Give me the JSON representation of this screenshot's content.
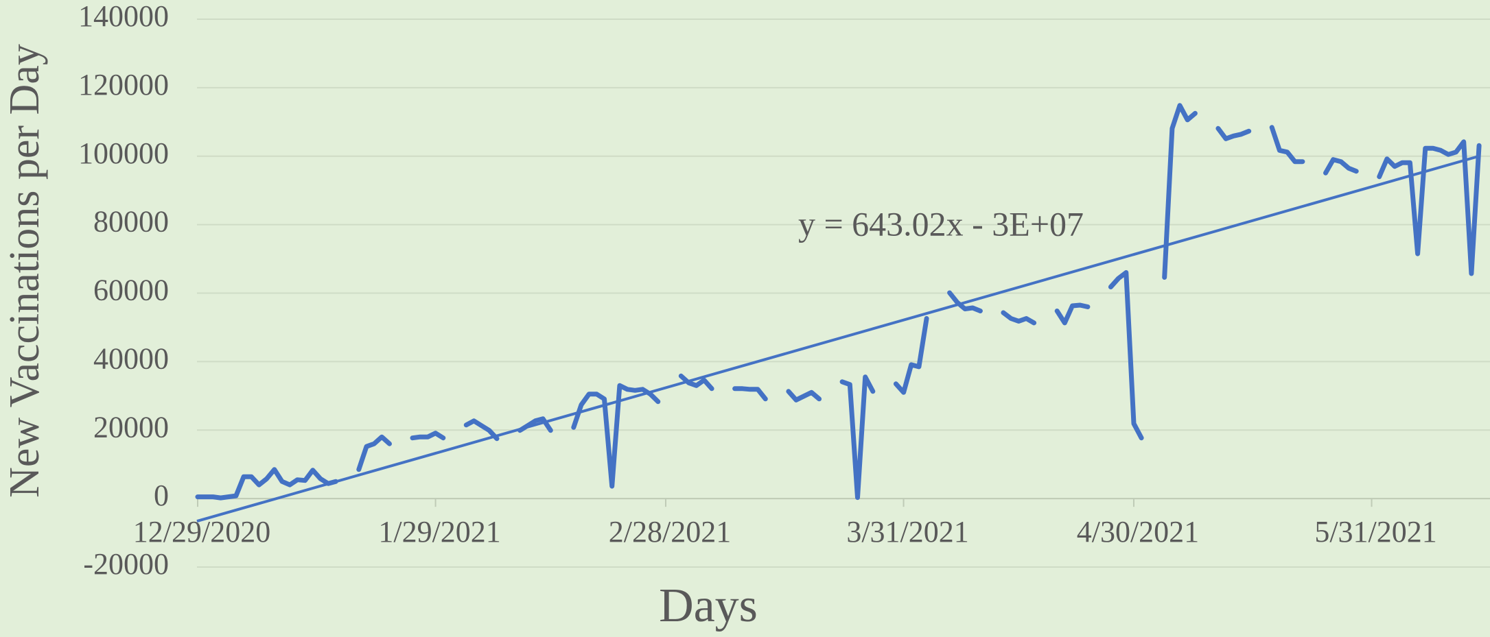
{
  "chart_data": {
    "type": "line",
    "y_label": "New Vaccinations per Day",
    "x_label": "Days",
    "categories": [
      "12/29/2020",
      null,
      null,
      null,
      null,
      null,
      null,
      null,
      null,
      null,
      null,
      null,
      null,
      null,
      null,
      null,
      null,
      null,
      null,
      null,
      null,
      null,
      null,
      null,
      null,
      null,
      null,
      null,
      null,
      null,
      null,
      "1/29/2021",
      null,
      null,
      null,
      null,
      null,
      null,
      null,
      null,
      null,
      null,
      null,
      null,
      null,
      null,
      null,
      null,
      null,
      null,
      null,
      null,
      null,
      null,
      null,
      null,
      null,
      null,
      null,
      null,
      null,
      "2/28/2021",
      null,
      null,
      null,
      null,
      null,
      null,
      null,
      null,
      null,
      null,
      null,
      null,
      null,
      null,
      null,
      null,
      null,
      null,
      null,
      null,
      null,
      null,
      null,
      null,
      null,
      null,
      null,
      null,
      null,
      null,
      "3/31/2021",
      null,
      null,
      null,
      null,
      null,
      null,
      null,
      null,
      null,
      null,
      null,
      null,
      null,
      null,
      null,
      null,
      null,
      null,
      null,
      null,
      null,
      null,
      null,
      null,
      null,
      null,
      null,
      null,
      null,
      "4/30/2021",
      null,
      null,
      null,
      null,
      null,
      null,
      null,
      null,
      null,
      null,
      null,
      null,
      null,
      null,
      null,
      null,
      null,
      null,
      null,
      null,
      null,
      null,
      null,
      null,
      null,
      null,
      null,
      null,
      null,
      null,
      "5/31/2021",
      null,
      null,
      null,
      null,
      null,
      null,
      null,
      null,
      null,
      null,
      null,
      null,
      null,
      null
    ],
    "series": [
      {
        "name": "New Vaccinations per Day",
        "color": "#4472c4",
        "values": [
          500,
          500,
          500,
          200,
          500,
          800,
          6400,
          6400,
          4000,
          5800,
          8500,
          5000,
          4000,
          5500,
          5300,
          8300,
          5800,
          4400,
          5000,
          null,
          null,
          8500,
          15200,
          16000,
          18000,
          16000,
          null,
          null,
          17700,
          18000,
          18000,
          19100,
          17700,
          null,
          null,
          21500,
          22700,
          21300,
          19900,
          17500,
          null,
          null,
          19900,
          21300,
          22700,
          23300,
          19900,
          null,
          null,
          20800,
          27400,
          30500,
          30500,
          29100,
          3600,
          33000,
          31900,
          31600,
          31900,
          30500,
          28300,
          null,
          null,
          35800,
          33800,
          33000,
          34600,
          32100,
          null,
          null,
          32100,
          32100,
          31900,
          31900,
          29100,
          null,
          null,
          31300,
          28800,
          29900,
          31000,
          29100,
          null,
          null,
          34100,
          33300,
          300,
          35500,
          31300,
          null,
          null,
          33500,
          31000,
          39100,
          38500,
          52600,
          null,
          null,
          60100,
          57300,
          55400,
          55700,
          54800,
          null,
          null,
          54300,
          52600,
          51800,
          52600,
          51300,
          null,
          null,
          54800,
          51300,
          56300,
          56500,
          56000,
          null,
          null,
          61800,
          64300,
          66000,
          21900,
          17700,
          null,
          null,
          64600,
          108100,
          114800,
          110600,
          112500,
          null,
          null,
          108100,
          105100,
          105900,
          106400,
          107300,
          null,
          null,
          108400,
          101700,
          101200,
          98400,
          98400,
          null,
          null,
          95100,
          99000,
          98400,
          96500,
          95600,
          null,
          null,
          94000,
          99200,
          97000,
          98100,
          98100,
          71500,
          102300,
          102300,
          101700,
          100500,
          101200,
          104200,
          65700,
          103100
        ]
      }
    ],
    "trendline": {
      "label": "y = 643.02x - 3E+07",
      "color": "#4472c4",
      "values": [
        -6600,
        100000
      ]
    },
    "ylim": [
      -20000,
      140000
    ],
    "yticks": [
      -20000,
      0,
      20000,
      40000,
      60000,
      80000,
      100000,
      120000,
      140000
    ],
    "grid": true
  }
}
